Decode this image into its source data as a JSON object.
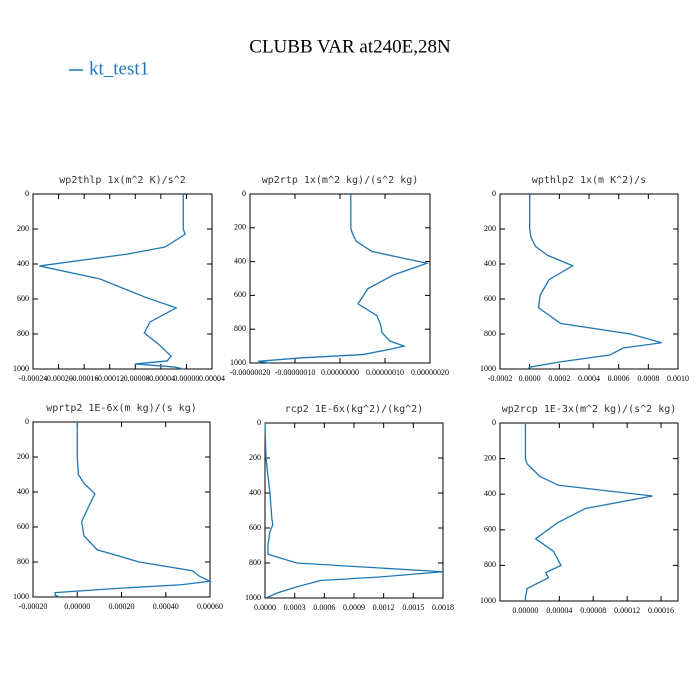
{
  "title": "CLUBB VAR at240E,28N",
  "chart_data": [
    {
      "type": "line",
      "title": "wp2thlp  1x(m^2 K)/s^2",
      "levels": [
        0,
        200,
        230,
        303,
        343,
        411,
        486,
        589,
        651,
        731,
        794,
        851,
        926,
        954,
        971,
        989,
        1000
      ],
      "series": [
        {
          "name": "kt_test1",
          "color": "#1f77b4",
          "values": [
            -5e-06,
            -5e-06,
            -2e-06,
            -3.35e-05,
            -9.14e-05,
            -0.00023,
            -0.000135,
            -6.5e-05,
            -1.6e-05,
            -5.7e-05,
            -6.6e-05,
            -4.6e-05,
            -2.4e-05,
            -3e-05,
            -8e-05,
            -1.8e-05,
            -5e-06
          ]
        }
      ],
      "xlim": [
        -0.00024,
        4e-05
      ],
      "xticks": [
        {
          "value": -0.00024,
          "label": "-0.00024"
        },
        {
          "value": -0.0002,
          "label": "-0.00020"
        },
        {
          "value": -0.00016,
          "label": "-0.00016"
        },
        {
          "value": -0.00012,
          "label": "-0.00012"
        },
        {
          "value": -8e-05,
          "label": "-0.00008"
        },
        {
          "value": -4e-05,
          "label": "-0.00004"
        },
        {
          "value": 0,
          "label": "0.00000"
        },
        {
          "value": 4e-05,
          "label": "0.00004"
        }
      ],
      "ylim": [
        1000,
        0
      ],
      "yticks": [
        0,
        200,
        400,
        600,
        800,
        1000
      ]
    },
    {
      "type": "line",
      "title": "wp2rtp  1x(m^2 kg)/(s^2 kg)",
      "levels": [
        0,
        200,
        230,
        280,
        340,
        410,
        480,
        560,
        650,
        720,
        780,
        820,
        870,
        900,
        920,
        950,
        970,
        990,
        1000
      ],
      "series": [
        {
          "name": "kt_test1",
          "color": "#1f77b4",
          "values": [
            2.4e-08,
            2.4e-08,
            2.7e-08,
            3.6e-08,
            7.1e-08,
            1.93e-07,
            1.18e-07,
            6.2e-08,
            4e-08,
            8.2e-08,
            9.1e-08,
            9.3e-08,
            1.11e-07,
            1.42e-07,
            1.09e-07,
            5.1e-08,
            -8.9e-08,
            -1.82e-07,
            -1.56e-07
          ]
        }
      ],
      "xlim": [
        -2e-07,
        2e-07
      ],
      "xticks": [
        {
          "value": -2e-07,
          "label": "-0.00000020"
        },
        {
          "value": -1e-07,
          "label": "-0.00000010"
        },
        {
          "value": 0,
          "label": "0.00000000"
        },
        {
          "value": 1e-07,
          "label": "0.00000010"
        },
        {
          "value": 2e-07,
          "label": "0.00000020"
        }
      ],
      "ylim": [
        1000,
        0
      ],
      "yticks": [
        0,
        200,
        400,
        600,
        800,
        1000
      ]
    },
    {
      "type": "line",
      "title": "wpthlp2  1x(m K^2)/s",
      "levels": [
        0,
        200,
        250,
        300,
        350,
        410,
        490,
        580,
        650,
        740,
        800,
        850,
        880,
        920,
        960,
        990,
        1000
      ],
      "series": [
        {
          "name": "kt_test1",
          "color": "#1f77b4",
          "values": [
            0,
            0,
            1e-05,
            4e-05,
            0.00012,
            0.00029,
            0.00013,
            7e-05,
            6e-05,
            0.00021,
            0.00068,
            0.00089,
            0.00063,
            0.00054,
            0.0002,
            0,
            -1e-05
          ]
        }
      ],
      "xlim": [
        -0.0002,
        0.001
      ],
      "xticks": [
        {
          "value": -0.0002,
          "label": "-0.0002"
        },
        {
          "value": 0,
          "label": "0.0000"
        },
        {
          "value": 0.0002,
          "label": "0.0002"
        },
        {
          "value": 0.0004,
          "label": "0.0004"
        },
        {
          "value": 0.0006,
          "label": "0.0006"
        },
        {
          "value": 0.0008,
          "label": "0.0008"
        },
        {
          "value": 0.001,
          "label": "0.0010"
        }
      ],
      "ylim": [
        1000,
        0
      ],
      "yticks": [
        0,
        200,
        400,
        600,
        800,
        1000
      ]
    },
    {
      "type": "line",
      "title": "wprtp2  1E-6x(m kg)/(s kg)",
      "levels": [
        0,
        200,
        300,
        350,
        410,
        500,
        570,
        650,
        730,
        800,
        850,
        880,
        910,
        930,
        950,
        975,
        990,
        1000
      ],
      "series": [
        {
          "name": "kt_test1",
          "color": "#1f77b4",
          "values": [
            0,
            0,
            5e-06,
            3e-05,
            8e-05,
            4.5e-05,
            2e-05,
            3e-05,
            9e-05,
            0.00028,
            0.00052,
            0.00055,
            0.0006,
            0.00047,
            0.00019,
            -0.0001,
            -0.0001,
            -8e-05
          ]
        }
      ],
      "xlim": [
        -0.0002,
        0.0006
      ],
      "xticks": [
        {
          "value": -0.0002,
          "label": "-0.00020"
        },
        {
          "value": 0,
          "label": "0.00000"
        },
        {
          "value": 0.0002,
          "label": "0.00020"
        },
        {
          "value": 0.0004,
          "label": "0.00040"
        },
        {
          "value": 0.0006,
          "label": "0.00060"
        }
      ],
      "ylim": [
        1000,
        0
      ],
      "yticks": [
        0,
        200,
        400,
        600,
        800,
        1000
      ]
    },
    {
      "type": "line",
      "title": "rcp2  1E-6x(kg^2)/(kg^2)",
      "levels": [
        0,
        200,
        400,
        550,
        580,
        620,
        700,
        750,
        800,
        850,
        880,
        900,
        940,
        970,
        1000
      ],
      "series": [
        {
          "name": "kt_test1",
          "color": "#1f77b4",
          "values": [
            0,
            1e-05,
            5e-05,
            7e-05,
            8e-05,
            5e-05,
            3e-05,
            3e-05,
            0.00032,
            0.0018,
            0.00116,
            0.00056,
            0.0003,
            0.00013,
            1e-05
          ]
        }
      ],
      "xlim": [
        0,
        0.0018
      ],
      "xticks": [
        {
          "value": 0,
          "label": "0.0000"
        },
        {
          "value": 0.0003,
          "label": "0.0003"
        },
        {
          "value": 0.0006,
          "label": "0.0006"
        },
        {
          "value": 0.0009,
          "label": "0.0009"
        },
        {
          "value": 0.0012,
          "label": "0.0012"
        },
        {
          "value": 0.0015,
          "label": "0.0015"
        },
        {
          "value": 0.0018,
          "label": "0.0018"
        }
      ],
      "ylim": [
        1000,
        0
      ],
      "yticks": [
        0,
        200,
        400,
        600,
        800,
        1000
      ]
    },
    {
      "type": "line",
      "title": "wp2rcp  1E-3x(m^2 kg)/(s^2 kg)",
      "levels": [
        0,
        200,
        230,
        300,
        350,
        410,
        480,
        560,
        650,
        720,
        800,
        840,
        870,
        930,
        980,
        1000
      ],
      "series": [
        {
          "name": "kt_test1",
          "color": "#1f77b4",
          "values": [
            0,
            0,
            2e-06,
            1.7e-05,
            3.9e-05,
            0.00015,
            7.1e-05,
            3.8e-05,
            1.2e-05,
            3.3e-05,
            4.2e-05,
            2.4e-05,
            2.7e-05,
            2e-06,
            0,
            0
          ]
        }
      ],
      "xlim": [
        -3e-05,
        0.00018
      ],
      "xticks": [
        {
          "value": 0,
          "label": "0.00000"
        },
        {
          "value": 4e-05,
          "label": "0.00004"
        },
        {
          "value": 8e-05,
          "label": "0.00008"
        },
        {
          "value": 0.00012,
          "label": "0.00012"
        },
        {
          "value": 0.00016,
          "label": "0.00016"
        }
      ],
      "ylim": [
        1000,
        0
      ],
      "yticks": [
        0,
        200,
        400,
        600,
        800,
        1000
      ]
    }
  ]
}
